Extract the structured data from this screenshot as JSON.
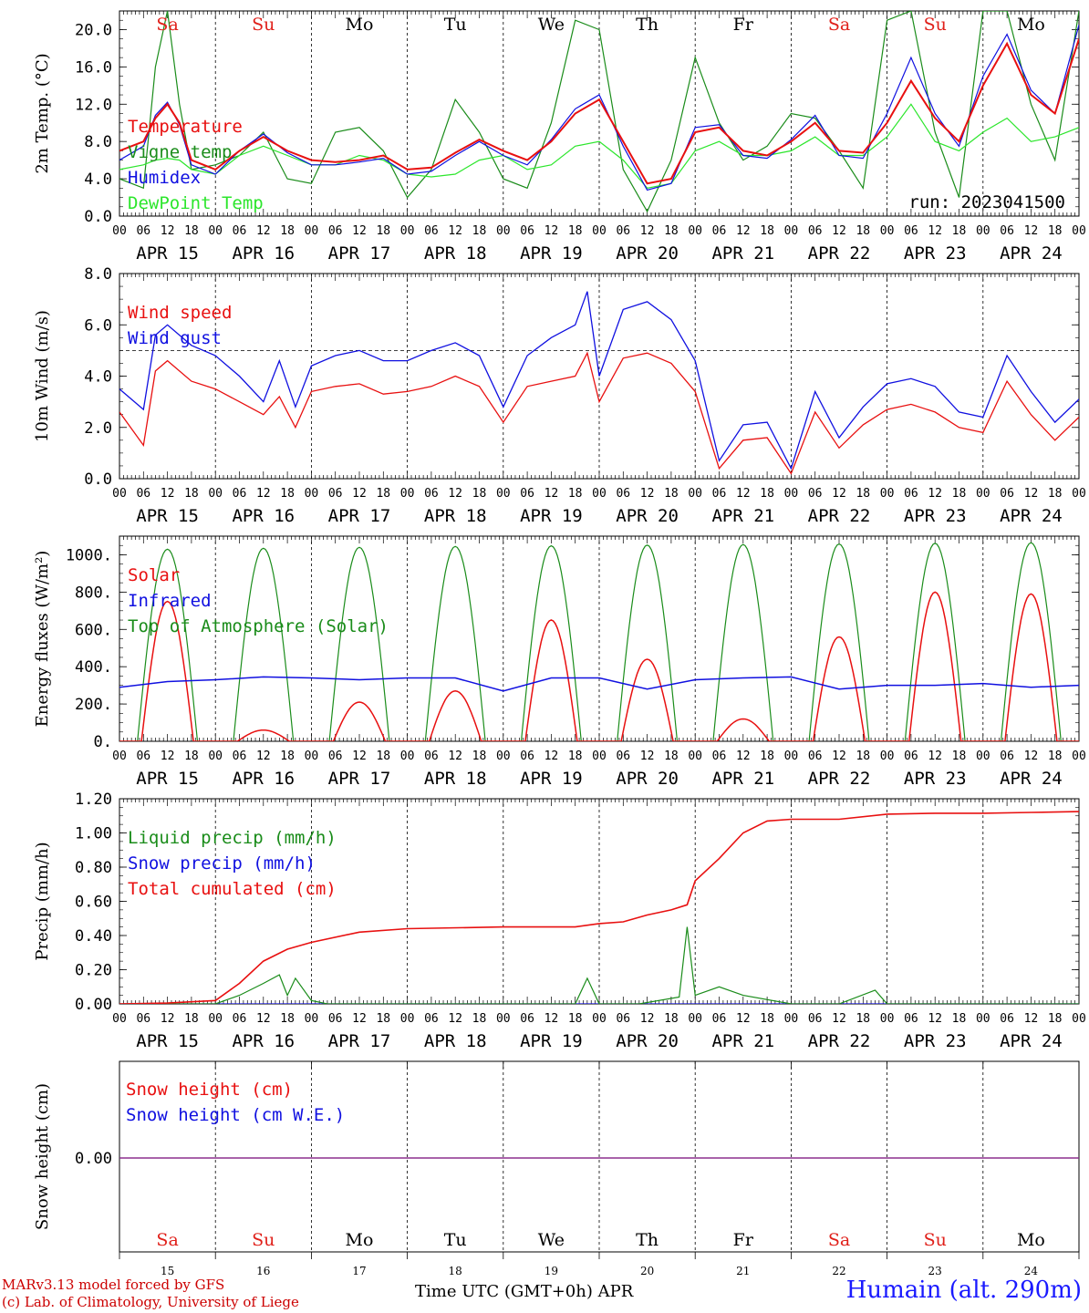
{
  "dates": [
    "APR 15",
    "APR 16",
    "APR 17",
    "APR 18",
    "APR 19",
    "APR 20",
    "APR 21",
    "APR 22",
    "APR 23",
    "APR 24"
  ],
  "date_numbers": [
    "15",
    "16",
    "17",
    "18",
    "19",
    "20",
    "21",
    "22",
    "23",
    "24"
  ],
  "weekdays": [
    "Sa",
    "Su",
    "Mo",
    "Tu",
    "We",
    "Th",
    "Fr",
    "Sa",
    "Su",
    "Mo"
  ],
  "weekday_colors": [
    "#e0201a",
    "#e0201a",
    "#000000",
    "#000000",
    "#000000",
    "#000000",
    "#000000",
    "#e0201a",
    "#e0201a",
    "#000000"
  ],
  "hour_ticks": [
    "00",
    "06",
    "12",
    "18"
  ],
  "run_label": "run: 2023041500",
  "footer": {
    "model": "MARv3.13 model forced by GFS",
    "lab": "(c) Lab. of Climatology, University of Liege",
    "xlabel": "Time UTC (GMT+0h)",
    "month": "APR",
    "station": "Humain (alt. 290m)"
  },
  "chart_data": [
    {
      "type": "line",
      "name": "temperature",
      "ylabel": "2m Temp. (°C)",
      "ylim": [
        0,
        22
      ],
      "yticks": [
        "0.0",
        "4.0",
        "8.0",
        "12.0",
        "16.0",
        "20.0"
      ],
      "ytick_values": [
        0,
        4,
        8,
        12,
        16,
        20
      ],
      "x_unit": "hours since APR 15 00 UTC",
      "series": [
        {
          "name": "Temperature",
          "color": "#e81010",
          "x": [
            0,
            6,
            9,
            12,
            15,
            18,
            24,
            30,
            36,
            42,
            48,
            54,
            60,
            66,
            72,
            78,
            84,
            90,
            96,
            102,
            108,
            114,
            120,
            126,
            132,
            138,
            144,
            150,
            156,
            162,
            168,
            174,
            180,
            186,
            192,
            198,
            204,
            210,
            216,
            222,
            228,
            234,
            240
          ],
          "y": [
            7.0,
            8.0,
            10.5,
            12.0,
            10.0,
            6.0,
            5.0,
            7.0,
            8.5,
            7.0,
            6.0,
            5.8,
            6.0,
            6.5,
            5.0,
            5.2,
            6.8,
            8.2,
            7.0,
            6.0,
            8.0,
            11.0,
            12.5,
            8.0,
            3.5,
            4.0,
            9.0,
            9.5,
            7.0,
            6.5,
            8.0,
            10.0,
            7.0,
            6.8,
            10.0,
            14.5,
            10.5,
            8.0,
            14.0,
            18.5,
            13.0,
            11.0,
            19.0
          ]
        },
        {
          "name": "Vigne temp",
          "color": "#1a8c1a",
          "x": [
            0,
            6,
            9,
            12,
            15,
            18,
            24,
            30,
            36,
            42,
            48,
            54,
            60,
            66,
            72,
            78,
            84,
            90,
            96,
            102,
            108,
            114,
            120,
            126,
            132,
            138,
            144,
            150,
            156,
            162,
            168,
            174,
            180,
            186,
            192,
            198,
            204,
            210,
            216,
            222,
            228,
            234,
            240
          ],
          "y": [
            4.0,
            3.0,
            16.0,
            22.0,
            12.0,
            5.0,
            5.5,
            6.5,
            9.0,
            4.0,
            3.5,
            9.0,
            9.5,
            7.0,
            2.0,
            5.0,
            12.5,
            9.0,
            4.0,
            3.0,
            10.0,
            21.0,
            20.0,
            5.0,
            0.5,
            6.0,
            17.0,
            10.0,
            6.0,
            7.5,
            11.0,
            10.5,
            7.0,
            3.0,
            21.0,
            22.0,
            9.0,
            2.0,
            22.0,
            22.0,
            12.0,
            6.0,
            22.0
          ]
        },
        {
          "name": "Humidex",
          "color": "#1010e0",
          "x": [
            0,
            6,
            9,
            12,
            15,
            18,
            24,
            30,
            36,
            42,
            48,
            54,
            60,
            66,
            72,
            78,
            84,
            90,
            96,
            102,
            108,
            114,
            120,
            126,
            132,
            138,
            144,
            150,
            156,
            162,
            168,
            174,
            180,
            186,
            192,
            198,
            204,
            210,
            216,
            222,
            228,
            234,
            240
          ],
          "y": [
            6.0,
            7.5,
            10.8,
            12.2,
            9.8,
            5.5,
            4.5,
            7.0,
            8.8,
            6.8,
            5.5,
            5.5,
            5.8,
            6.2,
            4.5,
            4.8,
            6.5,
            8.0,
            6.5,
            5.5,
            8.2,
            11.5,
            13.0,
            7.5,
            2.8,
            3.5,
            9.5,
            9.8,
            6.5,
            6.2,
            8.2,
            10.8,
            6.5,
            6.2,
            11.0,
            17.0,
            11.0,
            7.5,
            15.0,
            19.5,
            13.5,
            11.0,
            20.5
          ]
        },
        {
          "name": "DewPoint Temp",
          "color": "#2ce62c",
          "x": [
            0,
            6,
            9,
            12,
            15,
            18,
            24,
            30,
            36,
            42,
            48,
            54,
            60,
            66,
            72,
            78,
            84,
            90,
            96,
            102,
            108,
            114,
            120,
            126,
            132,
            138,
            144,
            150,
            156,
            162,
            168,
            174,
            180,
            186,
            192,
            198,
            204,
            210,
            216,
            222,
            228,
            234,
            240
          ],
          "y": [
            5.0,
            5.5,
            6.0,
            6.2,
            6.0,
            5.0,
            4.5,
            6.5,
            7.5,
            6.5,
            5.5,
            5.5,
            6.5,
            6.0,
            4.5,
            4.2,
            4.5,
            6.0,
            6.5,
            5.0,
            5.5,
            7.5,
            8.0,
            6.0,
            3.0,
            3.5,
            7.0,
            8.0,
            6.5,
            6.5,
            7.0,
            8.5,
            6.5,
            6.5,
            8.5,
            12.0,
            8.0,
            7.0,
            9.0,
            10.5,
            8.0,
            8.5,
            9.5
          ]
        }
      ]
    },
    {
      "type": "line",
      "name": "wind",
      "ylabel": "10m Wind (m/s)",
      "ylim": [
        0,
        8
      ],
      "yticks": [
        "0.0",
        "2.0",
        "4.0",
        "6.0",
        "8.0"
      ],
      "ytick_values": [
        0,
        2,
        4,
        6,
        8
      ],
      "reference_line": 5.0,
      "x_unit": "hours since APR 15 00 UTC",
      "series": [
        {
          "name": "Wind speed",
          "color": "#e81010",
          "x": [
            0,
            6,
            9,
            12,
            18,
            24,
            30,
            36,
            40,
            44,
            48,
            54,
            60,
            66,
            72,
            78,
            84,
            90,
            96,
            102,
            108,
            114,
            117,
            120,
            126,
            132,
            138,
            144,
            150,
            156,
            162,
            168,
            174,
            180,
            186,
            192,
            198,
            204,
            210,
            216,
            222,
            228,
            234,
            240
          ],
          "y": [
            2.6,
            1.3,
            4.2,
            4.6,
            3.8,
            3.5,
            3.0,
            2.5,
            3.2,
            2.0,
            3.4,
            3.6,
            3.7,
            3.3,
            3.4,
            3.6,
            4.0,
            3.6,
            2.2,
            3.6,
            3.8,
            4.0,
            4.9,
            3.0,
            4.7,
            4.9,
            4.5,
            3.4,
            0.4,
            1.5,
            1.6,
            0.2,
            2.6,
            1.2,
            2.1,
            2.7,
            2.9,
            2.6,
            2.0,
            1.8,
            3.8,
            2.5,
            1.5,
            2.4
          ]
        },
        {
          "name": "Wind gust",
          "color": "#1010e0",
          "x": [
            0,
            6,
            9,
            12,
            18,
            24,
            30,
            36,
            40,
            44,
            48,
            54,
            60,
            66,
            72,
            78,
            84,
            90,
            96,
            102,
            108,
            114,
            117,
            120,
            126,
            132,
            138,
            144,
            150,
            156,
            162,
            168,
            174,
            180,
            186,
            192,
            198,
            204,
            210,
            216,
            222,
            228,
            234,
            240
          ],
          "y": [
            3.5,
            2.7,
            5.6,
            6.0,
            5.2,
            4.8,
            4.0,
            3.0,
            4.6,
            2.8,
            4.4,
            4.8,
            5.0,
            4.6,
            4.6,
            5.0,
            5.3,
            4.8,
            2.8,
            4.8,
            5.5,
            6.0,
            7.3,
            4.0,
            6.6,
            6.9,
            6.2,
            4.6,
            0.7,
            2.1,
            2.2,
            0.4,
            3.4,
            1.6,
            2.8,
            3.7,
            3.9,
            3.6,
            2.6,
            2.4,
            4.8,
            3.4,
            2.2,
            3.1
          ]
        }
      ]
    },
    {
      "type": "line",
      "name": "energy",
      "ylabel": "Energy fluxes (W/m²)",
      "ylim": [
        0,
        1100
      ],
      "yticks": [
        "0.",
        "200.",
        "400.",
        "600.",
        "800.",
        "1000."
      ],
      "ytick_values": [
        0,
        200,
        400,
        600,
        800,
        1000
      ],
      "x_unit": "hours since APR 15 00 UTC",
      "series": [
        {
          "name": "Solar",
          "color": "#e81010",
          "day_peaks": [
            750,
            60,
            210,
            270,
            650,
            440,
            120,
            560,
            800,
            790
          ]
        },
        {
          "name": "Infrared",
          "color": "#1010e0",
          "x": [
            0,
            12,
            24,
            36,
            48,
            60,
            72,
            84,
            96,
            108,
            120,
            132,
            144,
            156,
            168,
            180,
            192,
            204,
            216,
            228,
            240
          ],
          "y": [
            290,
            320,
            330,
            345,
            340,
            330,
            340,
            340,
            270,
            340,
            340,
            280,
            330,
            340,
            345,
            280,
            300,
            300,
            310,
            290,
            300
          ]
        },
        {
          "name": "Top of Atmosphere (Solar)",
          "color": "#1a8c1a",
          "day_peaks": [
            1030,
            1035,
            1040,
            1045,
            1048,
            1052,
            1055,
            1058,
            1062,
            1065
          ]
        }
      ]
    },
    {
      "type": "line",
      "name": "precip",
      "ylabel": "Precip (mm/h)",
      "ylim": [
        0,
        1.2
      ],
      "yticks": [
        "0.00",
        "0.20",
        "0.40",
        "0.60",
        "0.80",
        "1.00",
        "1.20"
      ],
      "ytick_values": [
        0,
        0.2,
        0.4,
        0.6,
        0.8,
        1.0,
        1.2
      ],
      "x_unit": "hours since APR 15 00 UTC",
      "series": [
        {
          "name": "Liquid precip (mm/h)",
          "color": "#1a8c1a",
          "x": [
            0,
            24,
            30,
            36,
            40,
            42,
            44,
            48,
            52,
            114,
            117,
            120,
            130,
            140,
            142,
            144,
            150,
            156,
            168,
            180,
            189,
            192,
            240
          ],
          "y": [
            0,
            0,
            0.05,
            0.12,
            0.17,
            0.05,
            0.15,
            0.02,
            0,
            0,
            0.15,
            0,
            0,
            0.04,
            0.45,
            0.05,
            0.1,
            0.05,
            0,
            0,
            0.08,
            0,
            0
          ]
        },
        {
          "name": "Snow precip (mm/h)",
          "color": "#1010e0",
          "x": [
            0,
            240
          ],
          "y": [
            0,
            0
          ]
        },
        {
          "name": "Total cumulated (cm)",
          "color": "#e81010",
          "x": [
            0,
            12,
            24,
            30,
            36,
            42,
            48,
            60,
            72,
            96,
            114,
            120,
            126,
            132,
            138,
            142,
            144,
            150,
            156,
            162,
            168,
            180,
            192,
            204,
            216,
            228,
            240
          ],
          "y": [
            0,
            0.005,
            0.02,
            0.12,
            0.25,
            0.32,
            0.36,
            0.42,
            0.44,
            0.45,
            0.45,
            0.47,
            0.48,
            0.52,
            0.55,
            0.58,
            0.72,
            0.85,
            1.0,
            1.07,
            1.08,
            1.08,
            1.11,
            1.115,
            1.115,
            1.12,
            1.125
          ]
        }
      ]
    },
    {
      "type": "line",
      "name": "snow",
      "ylabel": "Snow height (cm)",
      "yticks": [
        "0.00"
      ],
      "x_unit": "hours since APR 15 00 UTC",
      "series": [
        {
          "name": "Snow height (cm)",
          "color": "#e81010",
          "x": [
            0,
            240
          ],
          "y": [
            0,
            0
          ]
        },
        {
          "name": "Snow height (cm W.E.)",
          "color": "#1010e0",
          "x": [
            0,
            240
          ],
          "y": [
            0,
            0
          ]
        }
      ]
    }
  ]
}
